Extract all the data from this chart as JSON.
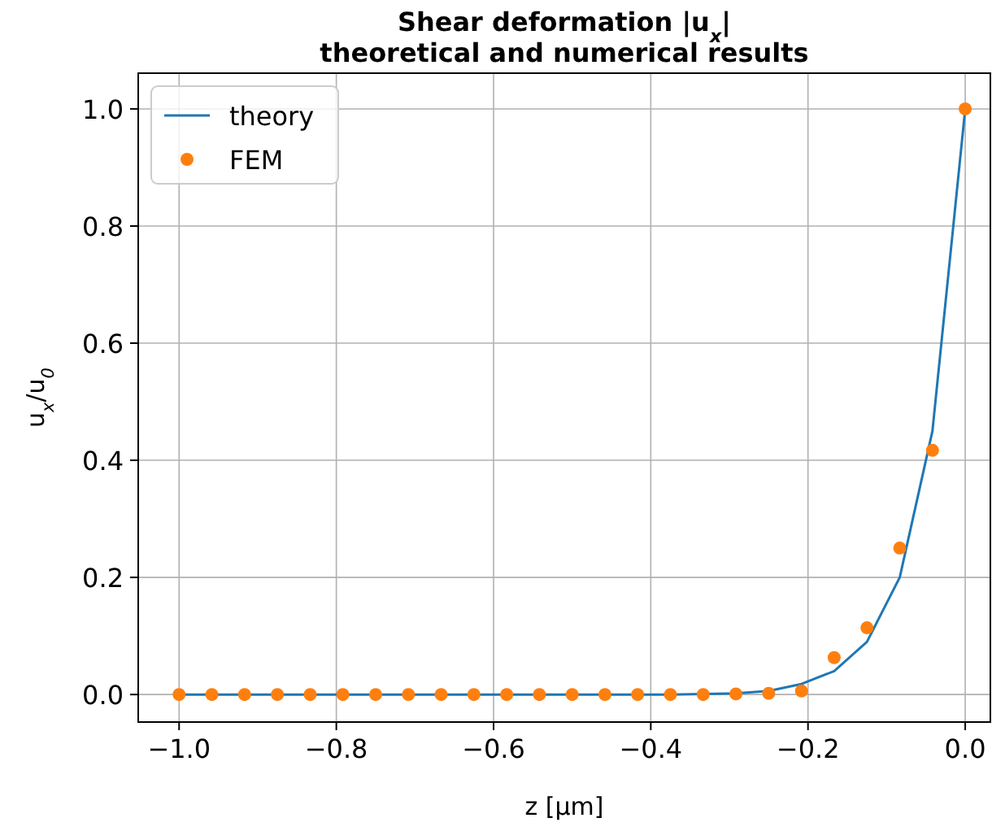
{
  "chart_data": {
    "type": "line",
    "title": "Shear deformation |u$_{x}$|\ntheoretical and numerical results",
    "xlabel": "z [μm]",
    "ylabel": "u$_{x}$/u$_{0}$",
    "x": [
      -1,
      -0.9583,
      -0.9167,
      -0.875,
      -0.8333,
      -0.7917,
      -0.75,
      -0.7083,
      -0.6667,
      -0.625,
      -0.5833,
      -0.5417,
      -0.5,
      -0.4583,
      -0.4167,
      -0.375,
      -0.3333,
      -0.2917,
      -0.25,
      -0.2083,
      -0.1667,
      -0.125,
      -0.0833,
      -0.0417,
      0
    ],
    "series": [
      {
        "name": "theory",
        "color": "#1f77b4",
        "line_style": "solid",
        "values": [
          0,
          0,
          0,
          0,
          0,
          0,
          0,
          0,
          0,
          0,
          0,
          0,
          0,
          0,
          0,
          0,
          0.001,
          0.002,
          0.006,
          0.018,
          0.04,
          0.09,
          0.2,
          0.45,
          1.0
        ]
      },
      {
        "name": "FEM",
        "type": "scatter",
        "color": "#ff7f0e",
        "marker": "circle",
        "values": [
          0,
          0,
          0,
          0,
          0,
          0,
          0,
          0,
          0,
          0,
          0,
          0,
          0,
          0,
          0,
          0,
          0,
          0.001,
          0.002,
          0.006,
          0.063,
          0.114,
          0.25,
          0.417,
          1.0
        ]
      }
    ],
    "xlim": [
      -1.052,
      0.032
    ],
    "xticks": [
      {
        "value": -1,
        "label": "−1.0"
      },
      {
        "value": -0.8,
        "label": "−0.8"
      },
      {
        "value": -0.6,
        "label": "−0.6"
      },
      {
        "value": -0.4,
        "label": "−0.4"
      },
      {
        "value": -0.2,
        "label": "−0.2"
      },
      {
        "value": 0,
        "label": "0.0"
      }
    ],
    "ylim": [
      -0.047,
      1.061
    ],
    "yticks": [
      {
        "value": 0,
        "label": "0.0"
      },
      {
        "value": 0.2,
        "label": "0.2"
      },
      {
        "value": 0.4,
        "label": "0.4"
      },
      {
        "value": 0.6,
        "label": "0.6"
      },
      {
        "value": 0.8,
        "label": "0.8"
      },
      {
        "value": 1,
        "label": "1.0"
      }
    ],
    "grid": true,
    "legend": "top left"
  }
}
